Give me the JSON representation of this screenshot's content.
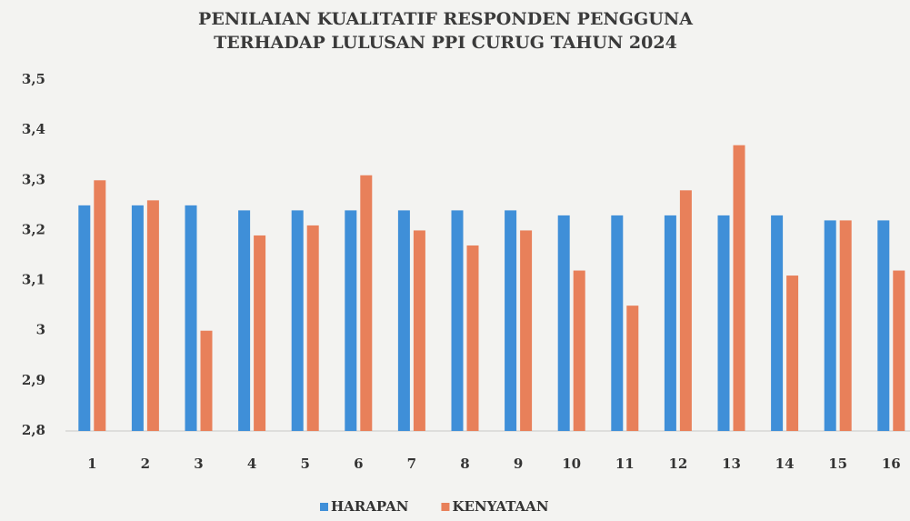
{
  "chart_data": {
    "type": "bar",
    "title": [
      "PENILAIAN KUALITATIF RESPONDEN PENGGUNA",
      "TERHADAP LULUSAN PPI CURUG TAHUN 2024"
    ],
    "categories": [
      "1",
      "2",
      "3",
      "4",
      "5",
      "6",
      "7",
      "8",
      "9",
      "10",
      "11",
      "12",
      "13",
      "14",
      "15",
      "16"
    ],
    "series": [
      {
        "name": "HARAPAN",
        "color": "#3f8fd8",
        "values": [
          3.25,
          3.25,
          3.25,
          3.24,
          3.24,
          3.24,
          3.24,
          3.24,
          3.24,
          3.23,
          3.23,
          3.23,
          3.23,
          3.23,
          3.22,
          3.22
        ]
      },
      {
        "name": "KENYATAAN",
        "color": "#e8805a",
        "values": [
          3.3,
          3.26,
          3.0,
          3.19,
          3.21,
          3.31,
          3.2,
          3.17,
          3.2,
          3.12,
          3.05,
          3.28,
          3.37,
          3.11,
          3.22,
          3.12
        ]
      }
    ],
    "ylim": [
      2.8,
      3.5
    ],
    "yticks": [
      {
        "value": 2.8,
        "label": "2,8"
      },
      {
        "value": 2.9,
        "label": "2,9"
      },
      3,
      {
        "value": 3.1,
        "label": "3,1"
      },
      {
        "value": 3.2,
        "label": "3,2"
      },
      {
        "value": 3.3,
        "label": "3,3"
      },
      {
        "value": 3.4,
        "label": "3,4"
      },
      {
        "value": 3.5,
        "label": "3,5"
      }
    ],
    "legend": "bottom"
  }
}
